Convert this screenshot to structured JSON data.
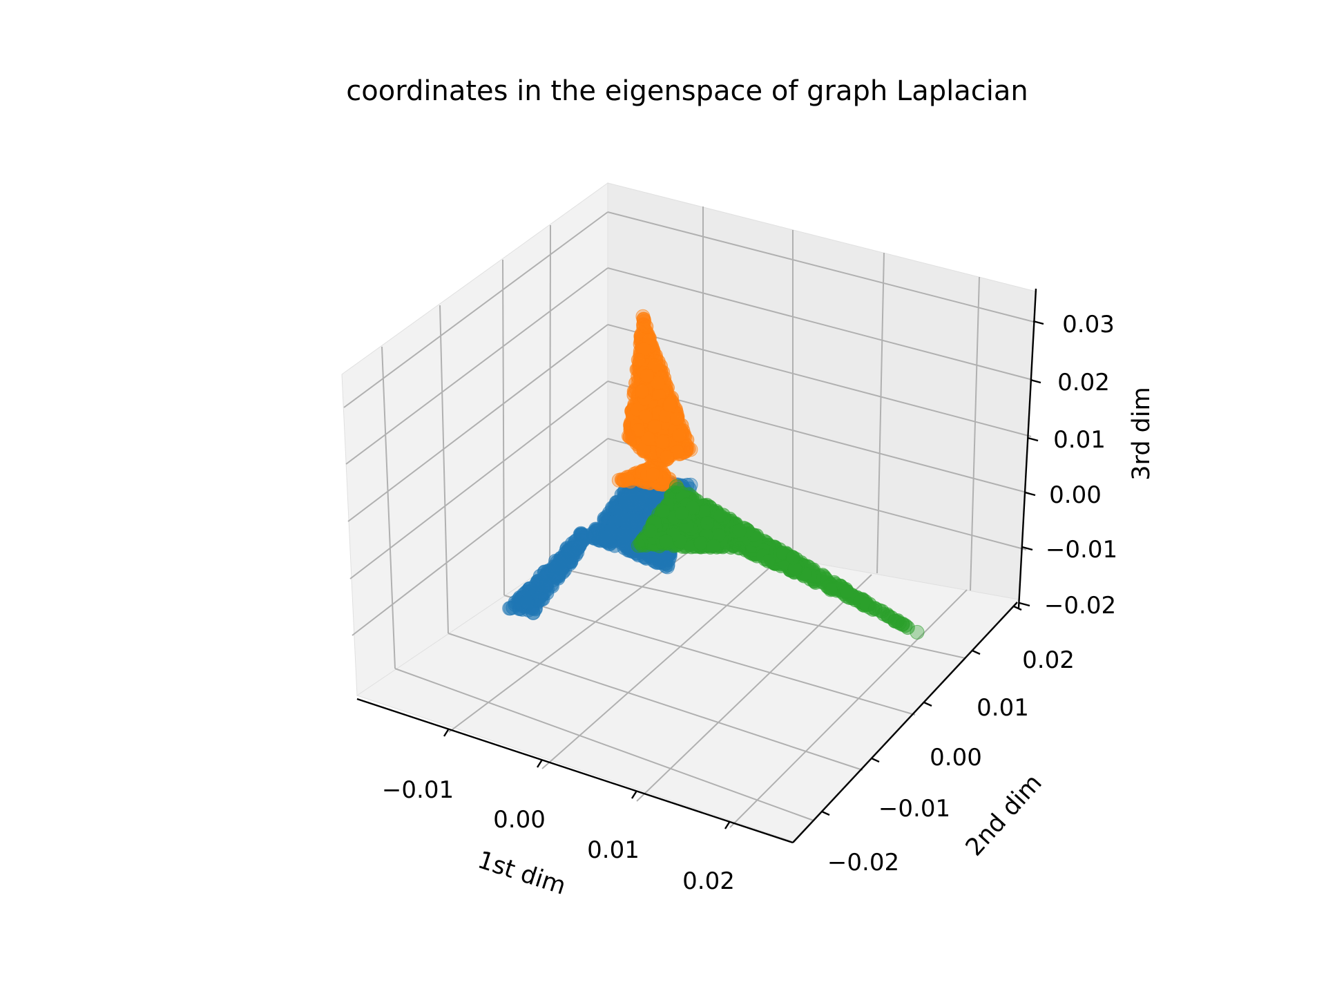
{
  "chart_data": {
    "type": "scatter",
    "projection": "3d",
    "title": "coordinates in the eigenspace of graph Laplacian",
    "xlabel": "1st dim",
    "ylabel": "2nd dim",
    "zlabel": "3rd dim",
    "grid": true,
    "xticks": [
      "−0.01",
      "0.00",
      "0.01",
      "0.02"
    ],
    "yticks": [
      "−0.02",
      "−0.01",
      "0.00",
      "0.01",
      "0.02"
    ],
    "zticks": [
      "−0.02",
      "−0.01",
      "0.00",
      "0.01",
      "0.02",
      "0.03"
    ],
    "xlim": [
      -0.02,
      0.025
    ],
    "ylim": [
      -0.025,
      0.025
    ],
    "zlim": [
      -0.02,
      0.035
    ],
    "series": [
      {
        "color": "#1f77b4",
        "description_points": [
          {
            "x": -0.014,
            "y": -0.004,
            "z": -0.0185
          },
          {
            "x": -0.012,
            "y": -0.003,
            "z": -0.019
          },
          {
            "x": -0.004,
            "y": 0.002,
            "z": 0.004
          },
          {
            "x": 0.001,
            "y": 0.004,
            "z": 0.004
          },
          {
            "x": 0.0,
            "y": 0.001,
            "z": -0.008
          },
          {
            "x": -0.008,
            "y": -0.001,
            "z": -0.005
          }
        ]
      },
      {
        "color": "#ff7f0e",
        "description_points": [
          {
            "x": -0.003,
            "y": 0.002,
            "z": 0.032
          },
          {
            "x": -0.004,
            "y": 0.001,
            "z": 0.012
          },
          {
            "x": 0.0,
            "y": 0.003,
            "z": 0.004
          },
          {
            "x": -0.005,
            "y": 0.001,
            "z": 0.004
          },
          {
            "x": 0.001,
            "y": 0.004,
            "z": 0.01
          }
        ]
      },
      {
        "color": "#2ca02c",
        "description_points": [
          {
            "x": 0.0,
            "y": 0.003,
            "z": 0.004
          },
          {
            "x": -0.003,
            "y": 0.001,
            "z": -0.006
          },
          {
            "x": 0.006,
            "y": 0.004,
            "z": -0.004
          },
          {
            "x": 0.015,
            "y": 0.005,
            "z": -0.007
          },
          {
            "x": 0.023,
            "y": 0.007,
            "z": -0.0115
          }
        ]
      }
    ]
  }
}
